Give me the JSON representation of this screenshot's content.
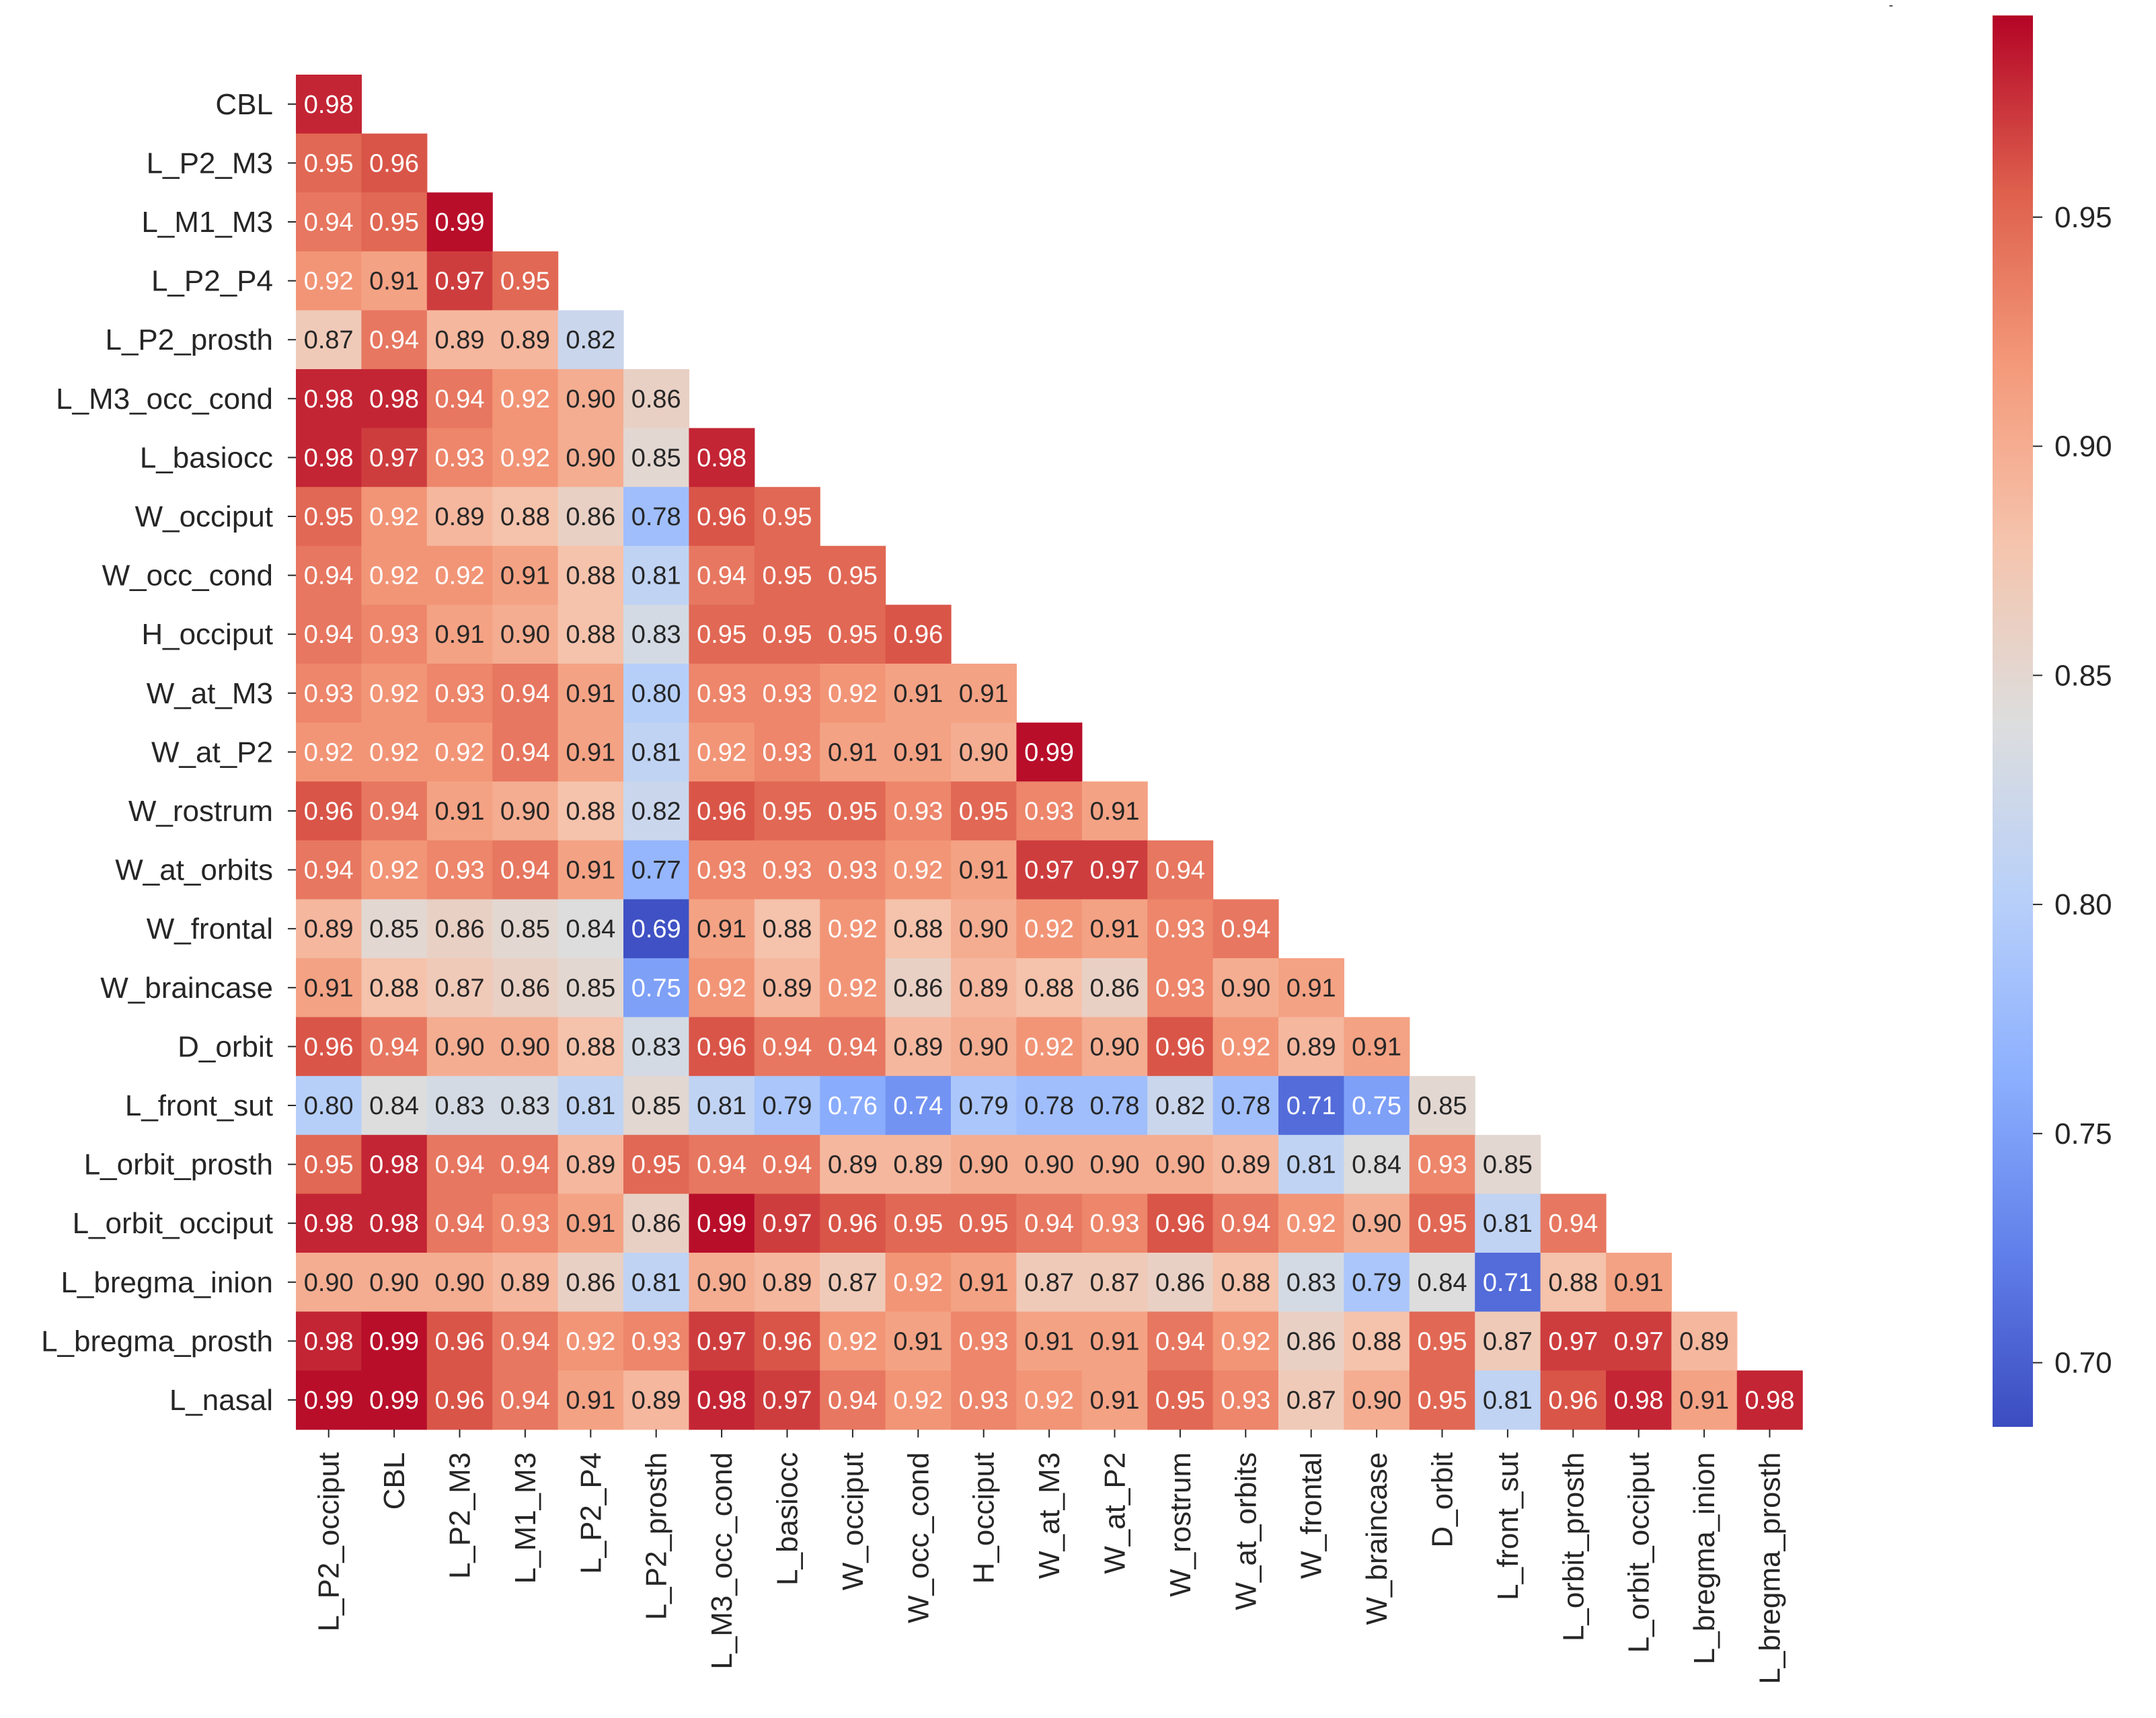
{
  "chart_data": {
    "type": "heatmap",
    "title": "-",
    "colormap": "coolwarm",
    "vmin": 0.686,
    "vmax": 0.994,
    "colorbar_ticks": [
      0.7,
      0.75,
      0.8,
      0.85,
      0.9,
      0.95
    ],
    "colorbar_tick_labels": [
      "0.70",
      "0.75",
      "0.80",
      "0.85",
      "0.90",
      "0.95"
    ],
    "row_labels": [
      "CBL",
      "L_P2_M3",
      "L_M1_M3",
      "L_P2_P4",
      "L_P2_prosth",
      "L_M3_occ_cond",
      "L_basiocc",
      "W_occiput",
      "W_occ_cond",
      "H_occiput",
      "W_at_M3",
      "W_at_P2",
      "W_rostrum",
      "W_at_orbits",
      "W_frontal",
      "W_braincase",
      "D_orbit",
      "L_front_sut",
      "L_orbit_prosth",
      "L_orbit_occiput",
      "L_bregma_inion",
      "L_bregma_prosth",
      "L_nasal"
    ],
    "col_labels": [
      "L_P2_occiput",
      "CBL",
      "L_P2_M3",
      "L_M1_M3",
      "L_P2_P4",
      "L_P2_prosth",
      "L_M3_occ_cond",
      "L_basiocc",
      "W_occiput",
      "W_occ_cond",
      "H_occiput",
      "W_at_M3",
      "W_at_P2",
      "W_rostrum",
      "W_at_orbits",
      "W_frontal",
      "W_braincase",
      "D_orbit",
      "L_front_sut",
      "L_orbit_prosth",
      "L_orbit_occiput",
      "L_bregma_inion",
      "L_bregma_prosth"
    ],
    "matrix": [
      [
        "0.98"
      ],
      [
        "0.95",
        "0.96"
      ],
      [
        "0.94",
        "0.95",
        "0.99"
      ],
      [
        "0.92",
        "0.91",
        "0.97",
        "0.95"
      ],
      [
        "0.87",
        "0.94",
        "0.89",
        "0.89",
        "0.82"
      ],
      [
        "0.98",
        "0.98",
        "0.94",
        "0.92",
        "0.90",
        "0.86"
      ],
      [
        "0.98",
        "0.97",
        "0.93",
        "0.92",
        "0.90",
        "0.85",
        "0.98"
      ],
      [
        "0.95",
        "0.92",
        "0.89",
        "0.88",
        "0.86",
        "0.78",
        "0.96",
        "0.95"
      ],
      [
        "0.94",
        "0.92",
        "0.92",
        "0.91",
        "0.88",
        "0.81",
        "0.94",
        "0.95",
        "0.95"
      ],
      [
        "0.94",
        "0.93",
        "0.91",
        "0.90",
        "0.88",
        "0.83",
        "0.95",
        "0.95",
        "0.95",
        "0.96"
      ],
      [
        "0.93",
        "0.92",
        "0.93",
        "0.94",
        "0.91",
        "0.80",
        "0.93",
        "0.93",
        "0.92",
        "0.91",
        "0.91"
      ],
      [
        "0.92",
        "0.92",
        "0.92",
        "0.94",
        "0.91",
        "0.81",
        "0.92",
        "0.93",
        "0.91",
        "0.91",
        "0.90",
        "0.99"
      ],
      [
        "0.96",
        "0.94",
        "0.91",
        "0.90",
        "0.88",
        "0.82",
        "0.96",
        "0.95",
        "0.95",
        "0.93",
        "0.95",
        "0.93",
        "0.91"
      ],
      [
        "0.94",
        "0.92",
        "0.93",
        "0.94",
        "0.91",
        "0.77",
        "0.93",
        "0.93",
        "0.93",
        "0.92",
        "0.91",
        "0.97",
        "0.97",
        "0.94"
      ],
      [
        "0.89",
        "0.85",
        "0.86",
        "0.85",
        "0.84",
        "0.69",
        "0.91",
        "0.88",
        "0.92",
        "0.88",
        "0.90",
        "0.92",
        "0.91",
        "0.93",
        "0.94"
      ],
      [
        "0.91",
        "0.88",
        "0.87",
        "0.86",
        "0.85",
        "0.75",
        "0.92",
        "0.89",
        "0.92",
        "0.86",
        "0.89",
        "0.88",
        "0.86",
        "0.93",
        "0.90",
        "0.91"
      ],
      [
        "0.96",
        "0.94",
        "0.90",
        "0.90",
        "0.88",
        "0.83",
        "0.96",
        "0.94",
        "0.94",
        "0.89",
        "0.90",
        "0.92",
        "0.90",
        "0.96",
        "0.92",
        "0.89",
        "0.91"
      ],
      [
        "0.80",
        "0.84",
        "0.83",
        "0.83",
        "0.81",
        "0.85",
        "0.81",
        "0.79",
        "0.76",
        "0.74",
        "0.79",
        "0.78",
        "0.78",
        "0.82",
        "0.78",
        "0.71",
        "0.75",
        "0.85"
      ],
      [
        "0.95",
        "0.98",
        "0.94",
        "0.94",
        "0.89",
        "0.95",
        "0.94",
        "0.94",
        "0.89",
        "0.89",
        "0.90",
        "0.90",
        "0.90",
        "0.90",
        "0.89",
        "0.81",
        "0.84",
        "0.93",
        "0.85"
      ],
      [
        "0.98",
        "0.98",
        "0.94",
        "0.93",
        "0.91",
        "0.86",
        "0.99",
        "0.97",
        "0.96",
        "0.95",
        "0.95",
        "0.94",
        "0.93",
        "0.96",
        "0.94",
        "0.92",
        "0.90",
        "0.95",
        "0.81",
        "0.94"
      ],
      [
        "0.90",
        "0.90",
        "0.90",
        "0.89",
        "0.86",
        "0.81",
        "0.90",
        "0.89",
        "0.87",
        "0.92",
        "0.91",
        "0.87",
        "0.87",
        "0.86",
        "0.88",
        "0.83",
        "0.79",
        "0.84",
        "0.71",
        "0.88",
        "0.91"
      ],
      [
        "0.98",
        "0.99",
        "0.96",
        "0.94",
        "0.92",
        "0.93",
        "0.97",
        "0.96",
        "0.92",
        "0.91",
        "0.93",
        "0.91",
        "0.91",
        "0.94",
        "0.92",
        "0.86",
        "0.88",
        "0.95",
        "0.87",
        "0.97",
        "0.97",
        "0.89"
      ],
      [
        "0.99",
        "0.99",
        "0.96",
        "0.94",
        "0.91",
        "0.89",
        "0.98",
        "0.97",
        "0.94",
        "0.92",
        "0.93",
        "0.92",
        "0.91",
        "0.95",
        "0.93",
        "0.87",
        "0.90",
        "0.95",
        "0.81",
        "0.96",
        "0.98",
        "0.91",
        "0.98"
      ]
    ]
  }
}
